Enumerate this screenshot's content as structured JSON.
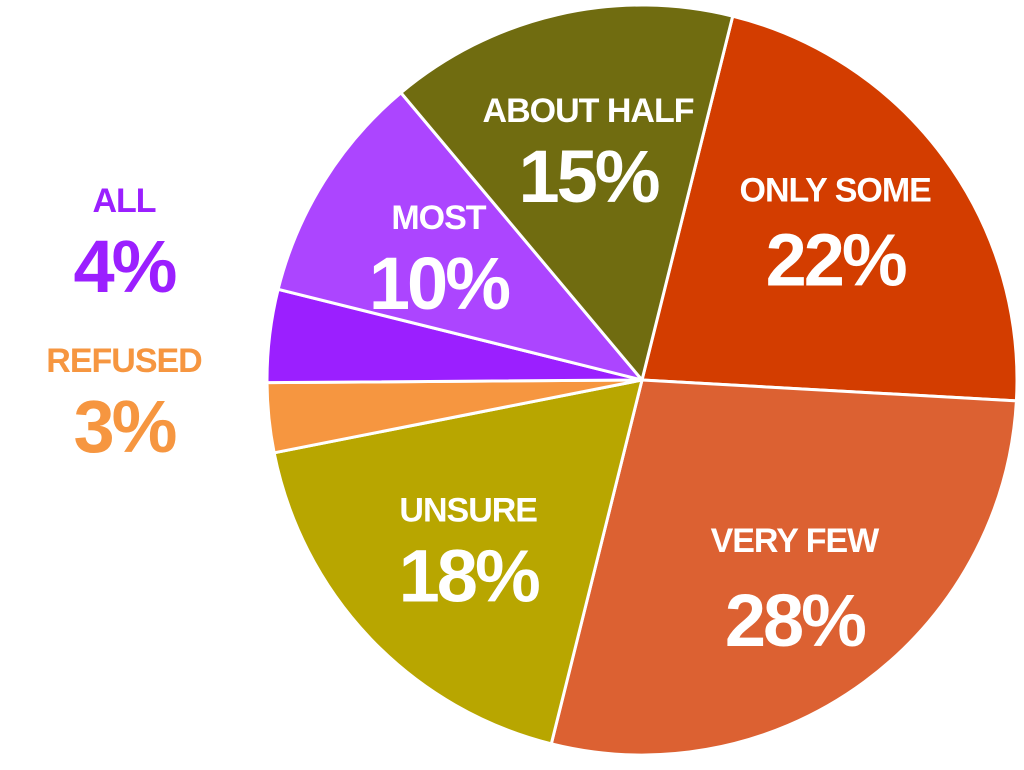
{
  "chart_data": {
    "type": "pie",
    "start_angle_deg": 76,
    "direction": "clockwise",
    "slices": [
      {
        "label": "ONLY SOME",
        "value": 22,
        "value_text": "22%",
        "color": "#d33d00",
        "label_color": "#ffffff",
        "label_placement": "inside"
      },
      {
        "label": "VERY FEW",
        "value": 28,
        "value_text": "28%",
        "color": "#dc6132",
        "label_color": "#ffffff",
        "label_placement": "inside"
      },
      {
        "label": "UNSURE",
        "value": 18,
        "value_text": "18%",
        "color": "#b8a600",
        "label_color": "#ffffff",
        "label_placement": "inside"
      },
      {
        "label": "REFUSED",
        "value": 3,
        "value_text": "3%",
        "color": "#f69640",
        "label_color": "#f69640",
        "label_placement": "outside-left"
      },
      {
        "label": "ALL",
        "value": 4,
        "value_text": "4%",
        "color": "#9b1fff",
        "label_color": "#9b1fff",
        "label_placement": "outside-left"
      },
      {
        "label": "MOST",
        "value": 10,
        "value_text": "10%",
        "color": "#ac45ff",
        "label_color": "#ffffff",
        "label_placement": "inside"
      },
      {
        "label": "ABOUT HALF",
        "value": 15,
        "value_text": "15%",
        "color": "#706c10",
        "label_color": "#ffffff",
        "label_placement": "inside"
      }
    ]
  }
}
